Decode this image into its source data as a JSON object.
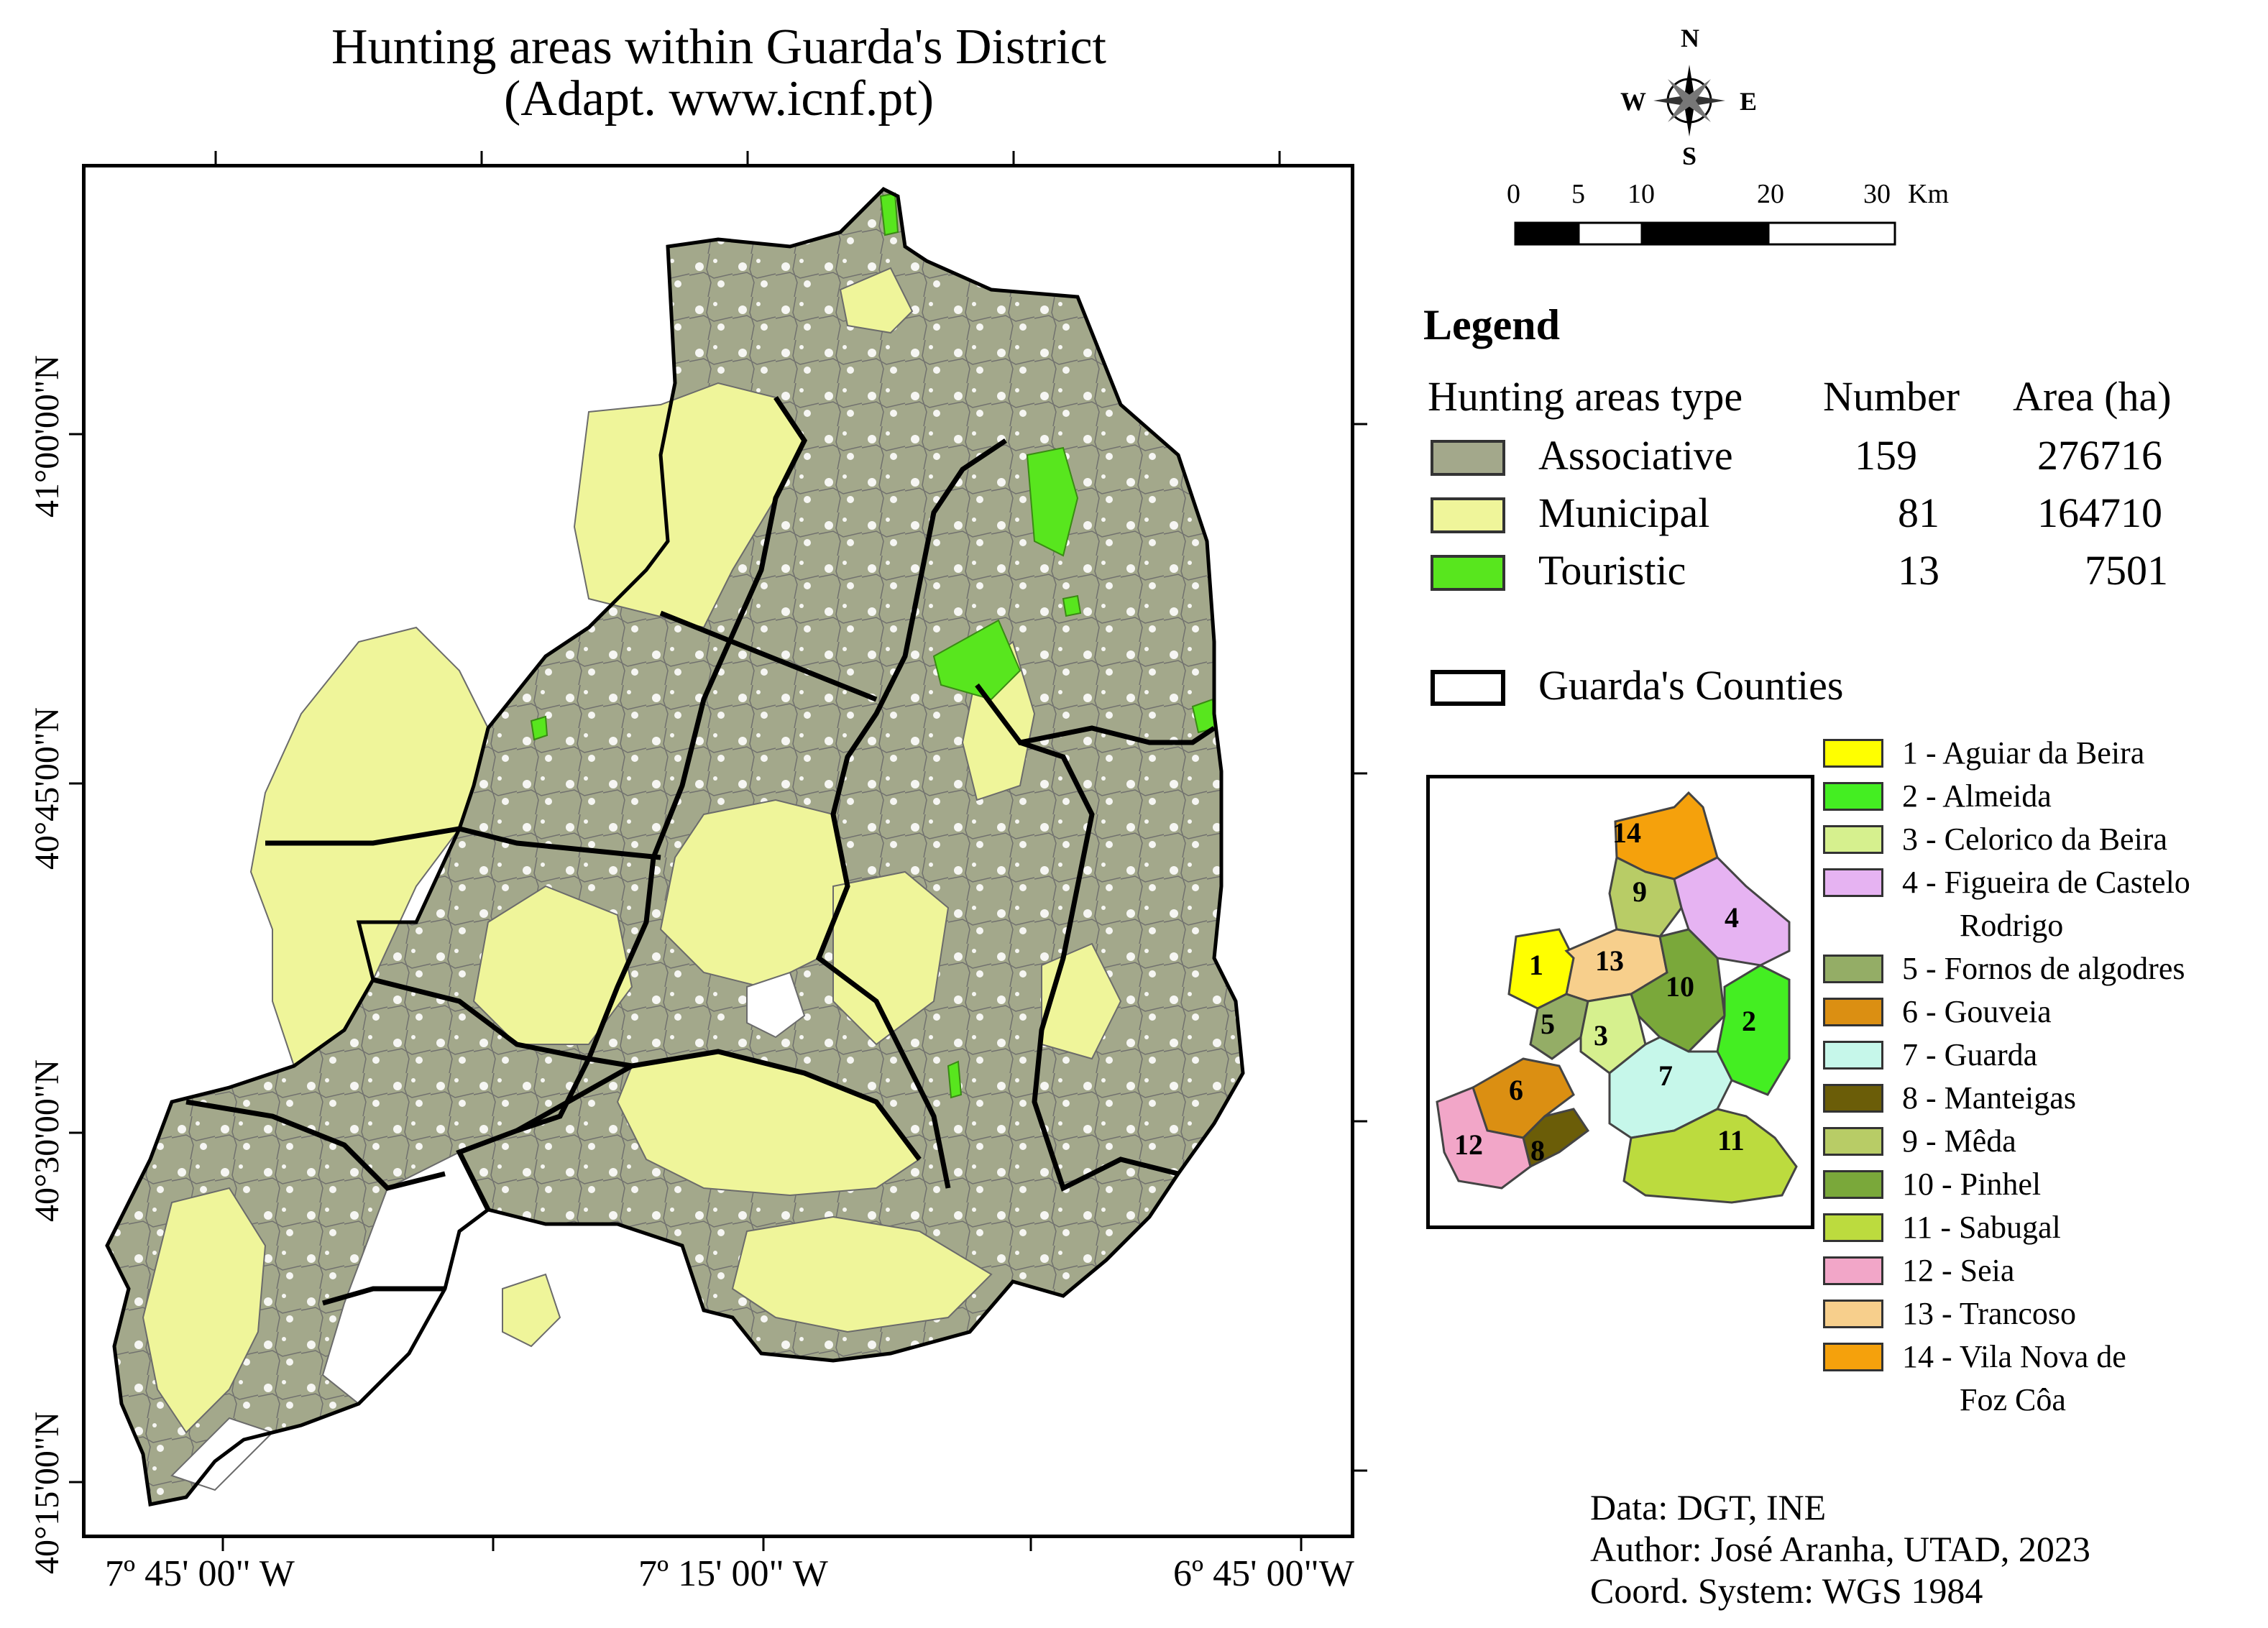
{
  "title": {
    "line1": "Hunting areas within Guarda's District",
    "line2": "(Adapt. www.icnf.pt)"
  },
  "axes": {
    "lat_labels": [
      "41°00'00\"N",
      "40°45'00\"N",
      "40°30'00\"N",
      "40°15'00\"N"
    ],
    "lon_labels": [
      "7º 45' 00\" W",
      "7º 15' 00\" W",
      "6º 45' 00\"W"
    ]
  },
  "compass": {
    "n": "N",
    "s": "S",
    "e": "E",
    "w": "W"
  },
  "scale_bar": {
    "ticks": [
      "0",
      "5",
      "10",
      "20",
      "30"
    ],
    "unit": "Km"
  },
  "legend": {
    "title": "Legend",
    "headers": {
      "type": "Hunting areas type",
      "number": "Number",
      "area": "Area (ha)"
    },
    "rows": [
      {
        "type": "Associative",
        "number": "159",
        "area": "276716",
        "color": "#a3a88b"
      },
      {
        "type": "Municipal",
        "number": "81",
        "area": "164710",
        "color": "#eff59a"
      },
      {
        "type": "Touristic",
        "number": "13",
        "area": "7501",
        "color": "#58e61e"
      }
    ],
    "counties_label": "Guarda's Counties"
  },
  "inset_numbers": [
    "1",
    "2",
    "3",
    "4",
    "5",
    "6",
    "7",
    "8",
    "9",
    "10",
    "11",
    "12",
    "13",
    "14"
  ],
  "counties": [
    {
      "label": "1 - Aguiar da Beira",
      "color": "#ffff00"
    },
    {
      "label": "2 - Almeida",
      "color": "#44ee22"
    },
    {
      "label": "3 - Celorico da Beira",
      "color": "#d6f08e"
    },
    {
      "label": "4 - Figueira de Castelo",
      "label2": "Rodrigo",
      "color": "#e6b3f2"
    },
    {
      "label": "5 - Fornos de algodres",
      "color": "#94ad66"
    },
    {
      "label": "6 - Gouveia",
      "color": "#db8f12"
    },
    {
      "label": "7 - Guarda",
      "color": "#c6f7ea"
    },
    {
      "label": "8 - Manteigas",
      "color": "#6b5d08"
    },
    {
      "label": "9 - Mêda",
      "color": "#b8cc66"
    },
    {
      "label": "10 - Pinhel",
      "color": "#7aa83a"
    },
    {
      "label": "11 - Sabugal",
      "color": "#bcdb3e"
    },
    {
      "label": "12 - Seia",
      "color": "#f2a6c8"
    },
    {
      "label": "13 - Trancoso",
      "color": "#f7cf8c"
    },
    {
      "label": "14 - Vila Nova de",
      "label2": "Foz Côa",
      "color": "#f5a10c"
    }
  ],
  "credits": {
    "data": "Data: DGT, INE",
    "author": "Author: José Aranha, UTAD, 2023",
    "coord": "Coord. System: WGS 1984"
  }
}
